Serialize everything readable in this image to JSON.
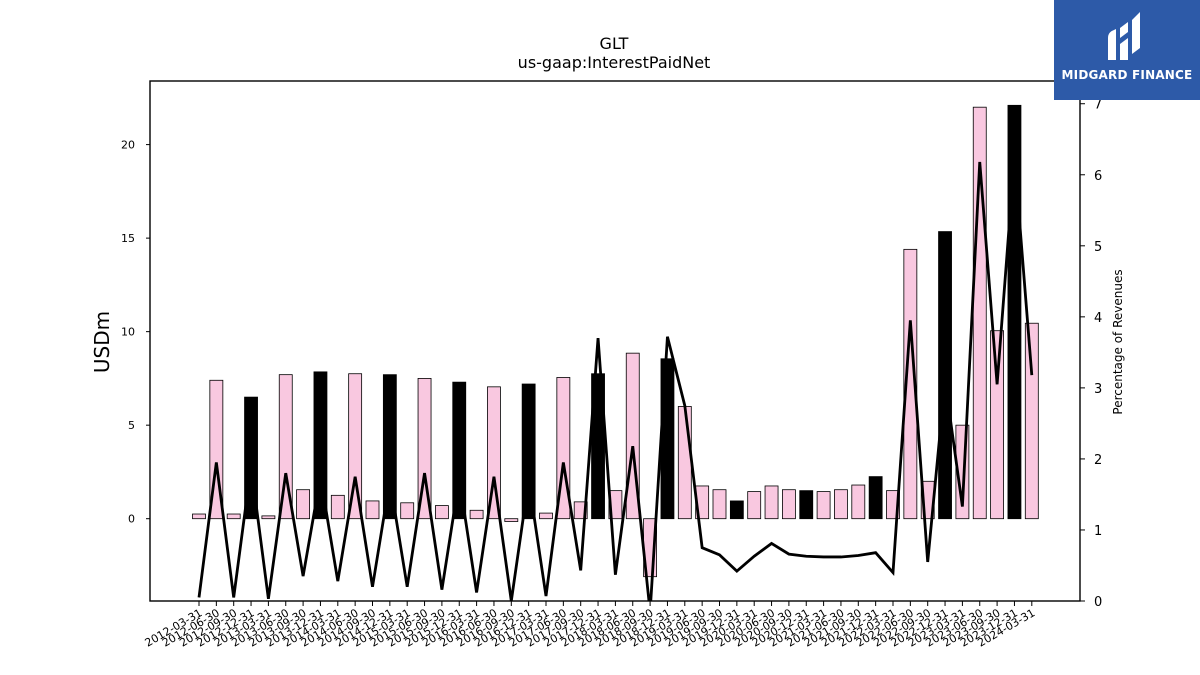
{
  "chart_data": {
    "type": "bar+line",
    "title": "GLT",
    "subtitle": "us-gaap:InterestPaidNet",
    "ylabel_left": "USDm",
    "ylabel_right": "Percentage of Revenues",
    "ylim_left": [
      -4.4,
      23.4
    ],
    "ylim_right": [
      0,
      7.32
    ],
    "yticks_left": [
      0,
      5,
      10,
      15,
      20
    ],
    "yticks_right": [
      0,
      1,
      2,
      3,
      4,
      5,
      6,
      7
    ],
    "bar_colors": {
      "quarter": "#f9c8e0",
      "year_end": "#000000"
    },
    "line_color": "#000000",
    "categories": [
      "2012-03-31",
      "2012-06-30",
      "2012-09-30",
      "2012-12-31",
      "2013-03-31",
      "2013-06-30",
      "2013-09-30",
      "2013-12-31",
      "2014-03-31",
      "2014-06-30",
      "2014-09-30",
      "2014-12-31",
      "2015-03-31",
      "2015-06-30",
      "2015-09-30",
      "2015-12-31",
      "2016-03-31",
      "2016-06-30",
      "2016-09-30",
      "2016-12-31",
      "2017-03-31",
      "2017-06-30",
      "2017-09-30",
      "2017-12-31",
      "2018-03-31",
      "2018-06-30",
      "2018-09-30",
      "2018-12-31",
      "2019-03-31",
      "2019-06-30",
      "2019-09-30",
      "2019-12-31",
      "2020-03-31",
      "2020-06-30",
      "2020-09-30",
      "2020-12-31",
      "2021-03-31",
      "2021-06-30",
      "2021-09-30",
      "2021-12-31",
      "2022-03-31",
      "2022-06-30",
      "2022-09-30",
      "2022-12-31",
      "2023-03-31",
      "2023-06-30",
      "2023-09-30",
      "2023-12-31",
      "2024-03-31"
    ],
    "xtick_labels": [
      "2012-03-31",
      "2012-06-30",
      "2012-09-30",
      "2012-12-31",
      "2013-03-31",
      "2013-06-30",
      "2013-09-30",
      "2013-12-31",
      "2014-03-31",
      "2014-06-30",
      "2014-09-30",
      "2014-12-31",
      "2015-03-31",
      "2015-06-30",
      "2015-09-30",
      "2015-12-31",
      "2016-03-31",
      "2016-06-30",
      "2016-09-30",
      "2016-12-31",
      "2017-03-31",
      "2017-06-30",
      "2017-09-30",
      "2017-12-31",
      "2018-03-31",
      "2018-06-30",
      "2018-09-30",
      "2018-12-31",
      "2019-03-31",
      "2019-06-30",
      "2019-09-30",
      "2019-12-31",
      "2020-03-31",
      "2020-06-30",
      "2020-09-30",
      "2020-12-31",
      "2021-03-31",
      "2021-06-30",
      "2021-09-30",
      "2021-12-31",
      "2022-03-31",
      "2022-06-30",
      "2022-09-30",
      "2022-12-31",
      "2023-03-31",
      "2023-06-30",
      "2023-09-30",
      "2023-12-31",
      "2024-03-31"
    ],
    "series": [
      {
        "kind": "bar",
        "axis": "left",
        "values": [
          0.25,
          7.4,
          0.25,
          6.5,
          0.15,
          7.7,
          1.55,
          7.85,
          1.25,
          7.75,
          0.95,
          7.7,
          0.85,
          7.5,
          0.7,
          7.3,
          0.45,
          7.05,
          -0.15,
          7.2,
          0.3,
          7.55,
          0.9,
          7.75,
          1.5,
          8.85,
          -3.1,
          8.55,
          6.0,
          1.75,
          1.55,
          0.95,
          1.45,
          1.75,
          1.55,
          1.5,
          1.45,
          1.55,
          1.8,
          2.25,
          1.5,
          14.4,
          2.0,
          15.35,
          5.0,
          22.0,
          10.05,
          22.1,
          10.45
        ],
        "year_end": [
          false,
          false,
          false,
          true,
          false,
          false,
          false,
          true,
          false,
          false,
          false,
          true,
          false,
          false,
          false,
          true,
          false,
          false,
          false,
          true,
          false,
          false,
          false,
          true,
          false,
          false,
          false,
          true,
          false,
          false,
          false,
          true,
          false,
          false,
          false,
          true,
          false,
          false,
          false,
          true,
          false,
          false,
          false,
          true,
          false,
          false,
          false,
          true,
          false
        ]
      },
      {
        "kind": "line",
        "axis": "right",
        "values": [
          0.05,
          1.95,
          0.05,
          1.9,
          0.03,
          1.8,
          0.35,
          1.75,
          0.28,
          1.75,
          0.2,
          1.7,
          0.2,
          1.8,
          0.16,
          1.72,
          0.12,
          1.75,
          0.0,
          1.7,
          0.07,
          1.95,
          0.43,
          3.7,
          0.37,
          2.18,
          -0.15,
          3.72,
          2.75,
          0.75,
          0.65,
          0.42,
          0.63,
          0.81,
          0.66,
          0.63,
          0.62,
          0.62,
          0.64,
          0.68,
          0.4,
          3.95,
          0.55,
          3.1,
          1.33,
          6.18,
          3.05,
          6.25,
          3.18
        ]
      }
    ]
  },
  "logo": {
    "text": "MIDGARD FINANCE"
  }
}
